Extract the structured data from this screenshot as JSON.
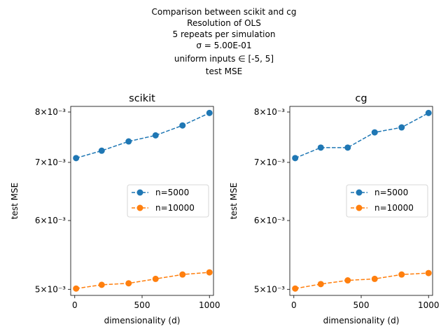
{
  "figure_title": [
    "Comparison between scikit and cg",
    "Resolution of OLS",
    "5 repeats per simulation",
    "σ = 5.00E-01",
    "uniform inputs ∈ [-5, 5]",
    "test MSE"
  ],
  "colors": {
    "n5000": "#1f77b4",
    "n10000": "#ff7f0e"
  },
  "chart_data": [
    {
      "type": "line",
      "title": "scikit",
      "xlabel": "dimensionality (d)",
      "ylabel": "test MSE",
      "yscale": "log",
      "xlim": [
        -30,
        1030
      ],
      "ylim": [
        0.00492,
        0.00812
      ],
      "xticks": [
        0,
        500,
        1000
      ],
      "xtick_labels": [
        "0",
        "500",
        "1000"
      ],
      "yticks": [
        0.005,
        0.006,
        0.007,
        0.008
      ],
      "ytick_labels": [
        "5×10⁻³",
        "6×10⁻³",
        "7×10⁻³",
        "8×10⁻³"
      ],
      "legend": "center-right",
      "x": [
        10,
        200,
        400,
        600,
        800,
        1000
      ],
      "series": [
        {
          "name": "n=5000",
          "color": "#1f77b4",
          "values": [
            0.00708,
            0.00722,
            0.0074,
            0.00752,
            0.00772,
            0.00798
          ]
        },
        {
          "name": "n=10000",
          "color": "#ff7f0e",
          "values": [
            0.00501,
            0.00506,
            0.00508,
            0.00514,
            0.0052,
            0.00523
          ]
        }
      ]
    },
    {
      "type": "line",
      "title": "cg",
      "xlabel": "dimensionality (d)",
      "ylabel": "test MSE",
      "yscale": "log",
      "xlim": [
        -30,
        1030
      ],
      "ylim": [
        0.00492,
        0.00812
      ],
      "xticks": [
        0,
        500,
        1000
      ],
      "xtick_labels": [
        "0",
        "500",
        "1000"
      ],
      "yticks": [
        0.005,
        0.006,
        0.007,
        0.008
      ],
      "ytick_labels": [
        "5×10⁻³",
        "6×10⁻³",
        "7×10⁻³",
        "8×10⁻³"
      ],
      "legend": "center-right",
      "x": [
        10,
        200,
        400,
        600,
        800,
        1000
      ],
      "series": [
        {
          "name": "n=5000",
          "color": "#1f77b4",
          "values": [
            0.00708,
            0.00728,
            0.00728,
            0.00758,
            0.00768,
            0.00798
          ]
        },
        {
          "name": "n=10000",
          "color": "#ff7f0e",
          "values": [
            0.00501,
            0.00507,
            0.00512,
            0.00514,
            0.0052,
            0.00522
          ]
        }
      ]
    }
  ]
}
